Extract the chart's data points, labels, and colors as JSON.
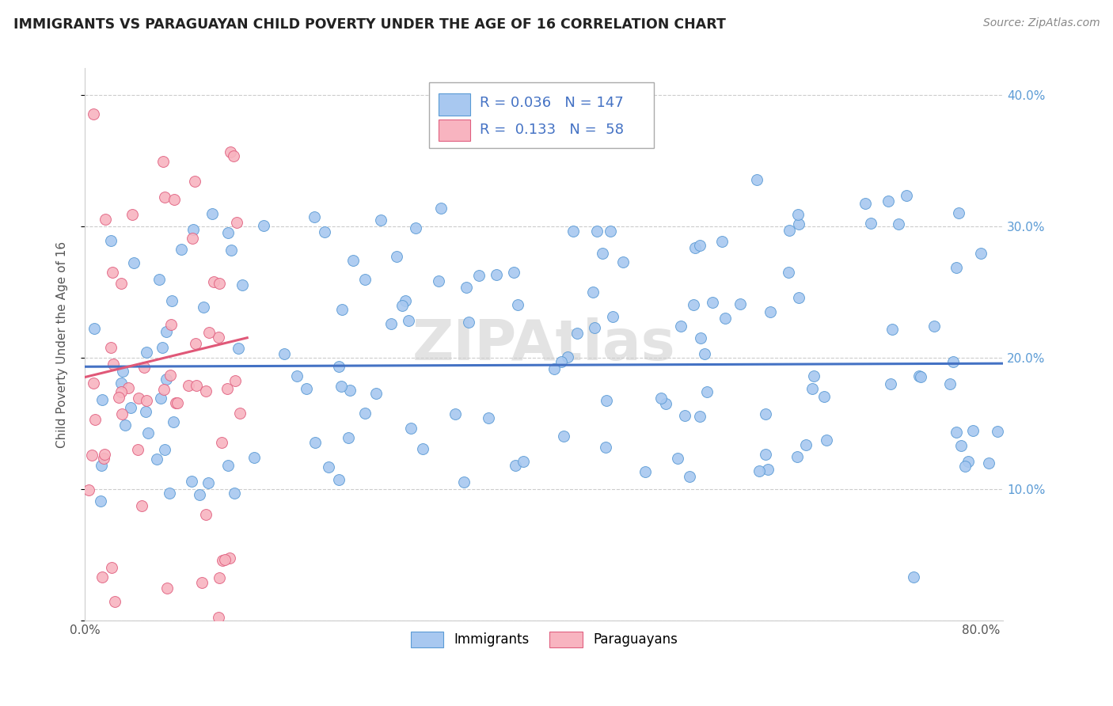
{
  "title": "IMMIGRANTS VS PARAGUAYAN CHILD POVERTY UNDER THE AGE OF 16 CORRELATION CHART",
  "source": "Source: ZipAtlas.com",
  "ylabel": "Child Poverty Under the Age of 16",
  "xlim": [
    0.0,
    0.82
  ],
  "ylim": [
    0.0,
    0.42
  ],
  "yticks": [
    0.0,
    0.1,
    0.2,
    0.3,
    0.4
  ],
  "ytick_labels_right": [
    "",
    "10.0%",
    "20.0%",
    "30.0%",
    "40.0%"
  ],
  "xticks": [
    0.0,
    0.1,
    0.2,
    0.3,
    0.4,
    0.5,
    0.6,
    0.7,
    0.8
  ],
  "xtick_labels": [
    "0.0%",
    "",
    "",
    "",
    "",
    "",
    "",
    "",
    "80.0%"
  ],
  "legend_labels": [
    "Immigrants",
    "Paraguayans"
  ],
  "blue_fill": "#a8c8f0",
  "pink_fill": "#f8b4c0",
  "blue_edge": "#5b9bd5",
  "pink_edge": "#e06080",
  "blue_line": "#4472c4",
  "pink_line": "#e05878",
  "right_tick_color": "#5b9bd5",
  "R_blue": "0.036",
  "N_blue": "147",
  "R_pink": "0.133",
  "N_pink": "58",
  "watermark": "ZIPAtlas",
  "bg": "#ffffff",
  "grid_color": "#cccccc",
  "title_color": "#222222",
  "source_color": "#888888"
}
